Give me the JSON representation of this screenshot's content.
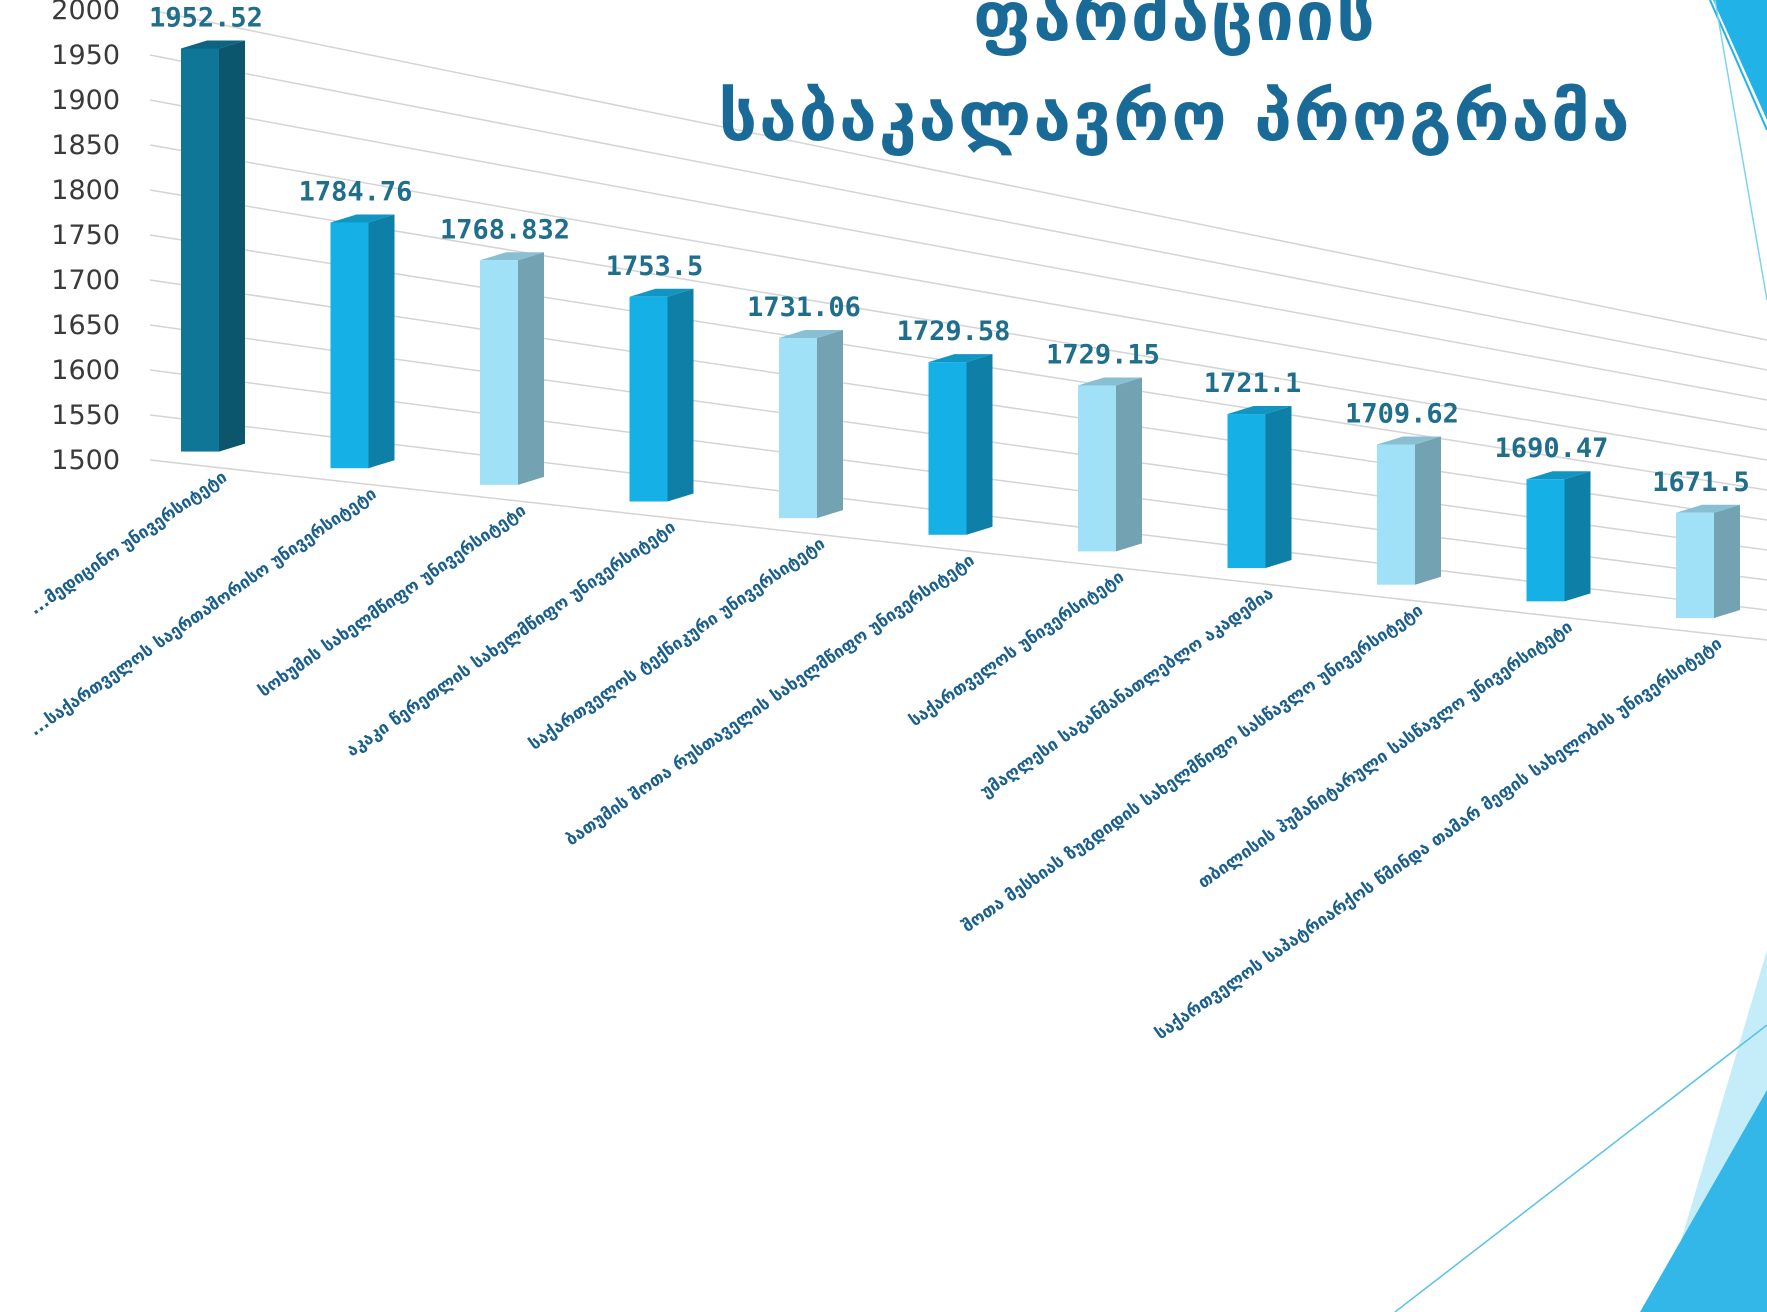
{
  "chart_data": {
    "type": "bar",
    "title": "ფარმაციის საბაკალავრო პროგრამა",
    "title_lines": [
      "ფარმაციის",
      "საბაკალავრო პროგრამა"
    ],
    "categories": [
      "...მედიცინო უნივერსიტეტი",
      "...საქართველოს საერთაშორისო უნივერსიტეტი",
      "სოხუმის სახელმწიფო უნივერსიტეტი",
      "აკაკი წერეთლის სახელმწიფო უნივერსიტეტი",
      "საქართველოს ტექნიკური უნივერსიტეტი",
      "ბათუმის შოთა რუსთაველის სახელმწიფო უნივერსიტეტი",
      "საქართველოს უნივერსიტეტი",
      "უმაღლესი საგანმანათლებლო აკადემია",
      "შოთა მესხიას ზუგდიდის სახელმწიფო სასწავლო უნივერსიტეტი",
      "თბილისის ჰუმანიტარული სასწავლო უნივერსიტეტი",
      "საქართველოს საპატრიარქოს წმინდა თამარ მეფის სახელობის უნივერსიტეტი"
    ],
    "values": [
      1952.52,
      1784.76,
      1768.832,
      1753.5,
      1731.06,
      1729.58,
      1729.15,
      1721.1,
      1709.62,
      1690.47,
      1671.5
    ],
    "value_labels": [
      "1952.52",
      "1784.76",
      "1768.832",
      "1753.5",
      "1731.06",
      "1729.58",
      "1729.15",
      "1721.1",
      "1709.62",
      "1690.47",
      "1671.5"
    ],
    "yticks": [
      "1500",
      "1550",
      "1600",
      "1650",
      "1700",
      "1750",
      "1800",
      "1850",
      "1900",
      "1950",
      "2000"
    ],
    "ylim": [
      1500,
      2000
    ],
    "grid": true,
    "legend": "none",
    "colors": {
      "darkteal": "#0f7698",
      "blue": "#14b0e6",
      "light": "#a0e1f7",
      "grid": "#d4d4d4",
      "accent": "#1a6a98"
    },
    "bar_colors": [
      "darkteal",
      "blue",
      "light",
      "blue",
      "light",
      "blue",
      "light",
      "blue",
      "light",
      "blue",
      "light"
    ]
  }
}
